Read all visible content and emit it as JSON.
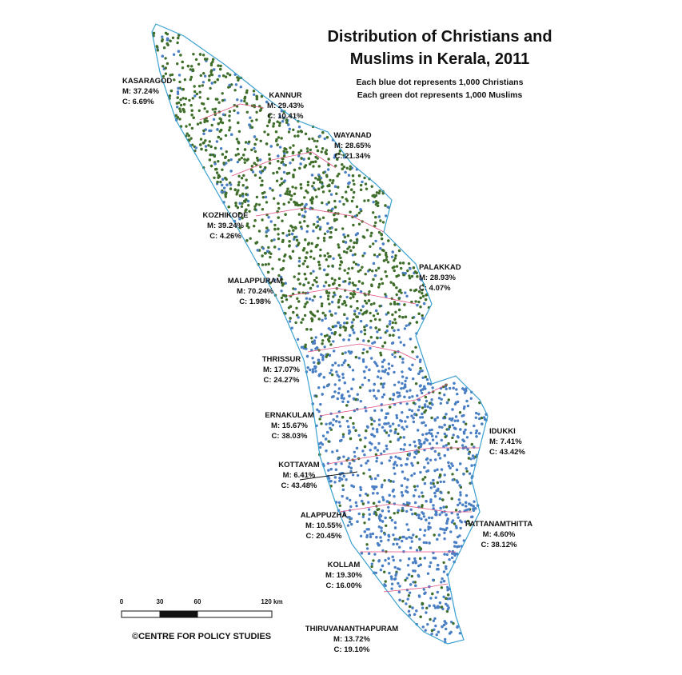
{
  "title_lines": [
    "Distribution of Christians and",
    "Muslims in Kerala, 2011"
  ],
  "legend": [
    "Each blue dot represents 1,000 Christians",
    "Each green dot represents 1,000 Muslims"
  ],
  "districts": [
    {
      "name": "KASARAGOD",
      "muslim": "M: 37.24%",
      "christian": "C: 6.69%"
    },
    {
      "name": "KANNUR",
      "muslim": "M: 29.43%",
      "christian": "C: 10.41%"
    },
    {
      "name": "WAYANAD",
      "muslim": "M: 28.65%",
      "christian": "C: 21.34%"
    },
    {
      "name": "KOZHIKODE",
      "muslim": "M: 39.24%",
      "christian": "C: 4.26%"
    },
    {
      "name": "PALAKKAD",
      "muslim": "M: 28.93%",
      "christian": "C: 4.07%"
    },
    {
      "name": "MALAPPURAM",
      "muslim": "M: 70.24%",
      "christian": "C: 1.98%"
    },
    {
      "name": "THRISSUR",
      "muslim": "M: 17.07%",
      "christian": "C: 24.27%"
    },
    {
      "name": "ERNAKULAM",
      "muslim": "M: 15.67%",
      "christian": "C: 38.03%"
    },
    {
      "name": "IDUKKI",
      "muslim": "M: 7.41%",
      "christian": "C: 43.42%"
    },
    {
      "name": "KOTTAYAM",
      "muslim": "M: 6.41%",
      "christian": "C: 43.48%"
    },
    {
      "name": "ALAPPUZHA",
      "muslim": "M: 10.55%",
      "christian": "C: 20.45%"
    },
    {
      "name": "PATTANAMTHITTA",
      "muslim": "M: 4.60%",
      "christian": "C: 38.12%"
    },
    {
      "name": "KOLLAM",
      "muslim": "M: 19.30%",
      "christian": "C: 16.00%"
    },
    {
      "name": "THIRUVANANTHAPURAM",
      "muslim": "M: 13.72%",
      "christian": "C: 19.10%"
    }
  ],
  "scale_labels": [
    "0",
    "30",
    "60",
    "120 km"
  ],
  "credit": "©CENTRE FOR POLICY STUDIES"
}
